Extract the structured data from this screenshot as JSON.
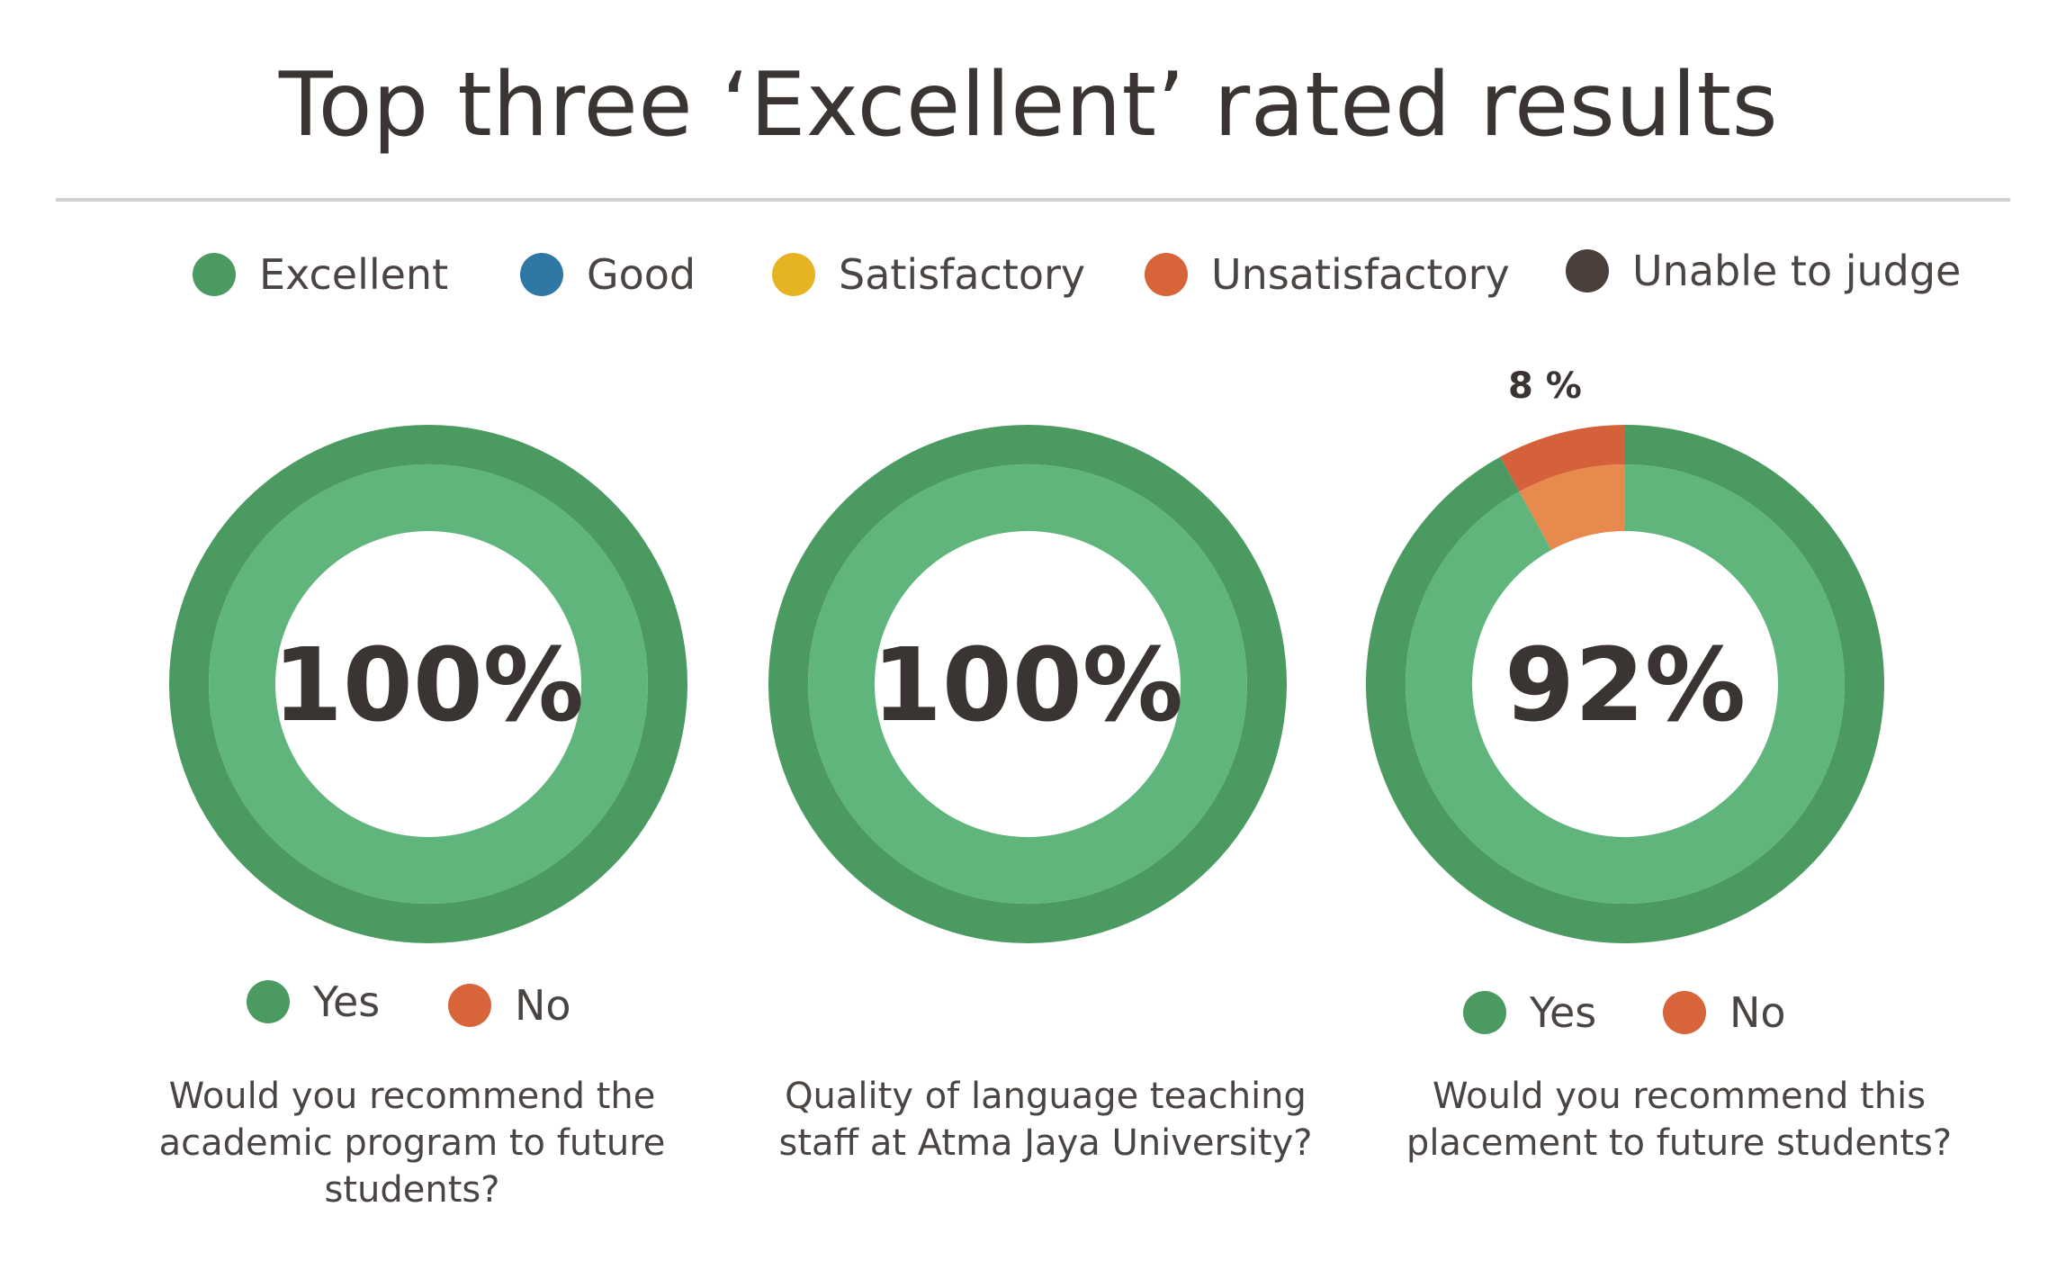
{
  "title": "Top three ‘Excellent’ rated results",
  "legend": [
    {
      "label": "Excellent",
      "color": "#4b9a62"
    },
    {
      "label": "Good",
      "color": "#2f78a6"
    },
    {
      "label": "Satisfactory",
      "color": "#e6b323"
    },
    {
      "label": "Unsatisfactory",
      "color": "#d8643a"
    },
    {
      "label": "Unable to judge",
      "color": "#4a3f3a"
    }
  ],
  "colors": {
    "yes_outer": "#4b9a62",
    "yes_inner": "#5fb57b",
    "no_outer": "#d4613a",
    "no_inner": "#e88a4e",
    "text": "#3a3532"
  },
  "chart_data": [
    {
      "type": "pie",
      "categories": [
        "Yes",
        "No"
      ],
      "values": [
        100,
        0
      ],
      "center_label": "100%",
      "legend": [
        "Yes",
        "No"
      ],
      "question": "Would you recommend the academic program to future students?"
    },
    {
      "type": "pie",
      "categories": [
        "Excellent"
      ],
      "values": [
        100
      ],
      "center_label": "100%",
      "legend": [],
      "question": "Quality of language teaching staff at Atma Jaya University?"
    },
    {
      "type": "pie",
      "categories": [
        "Yes",
        "No"
      ],
      "values": [
        92,
        8
      ],
      "center_label": "92%",
      "slice_label": "8 %",
      "legend": [
        "Yes",
        "No"
      ],
      "question": "Would you recommend this placement to future students?"
    }
  ]
}
